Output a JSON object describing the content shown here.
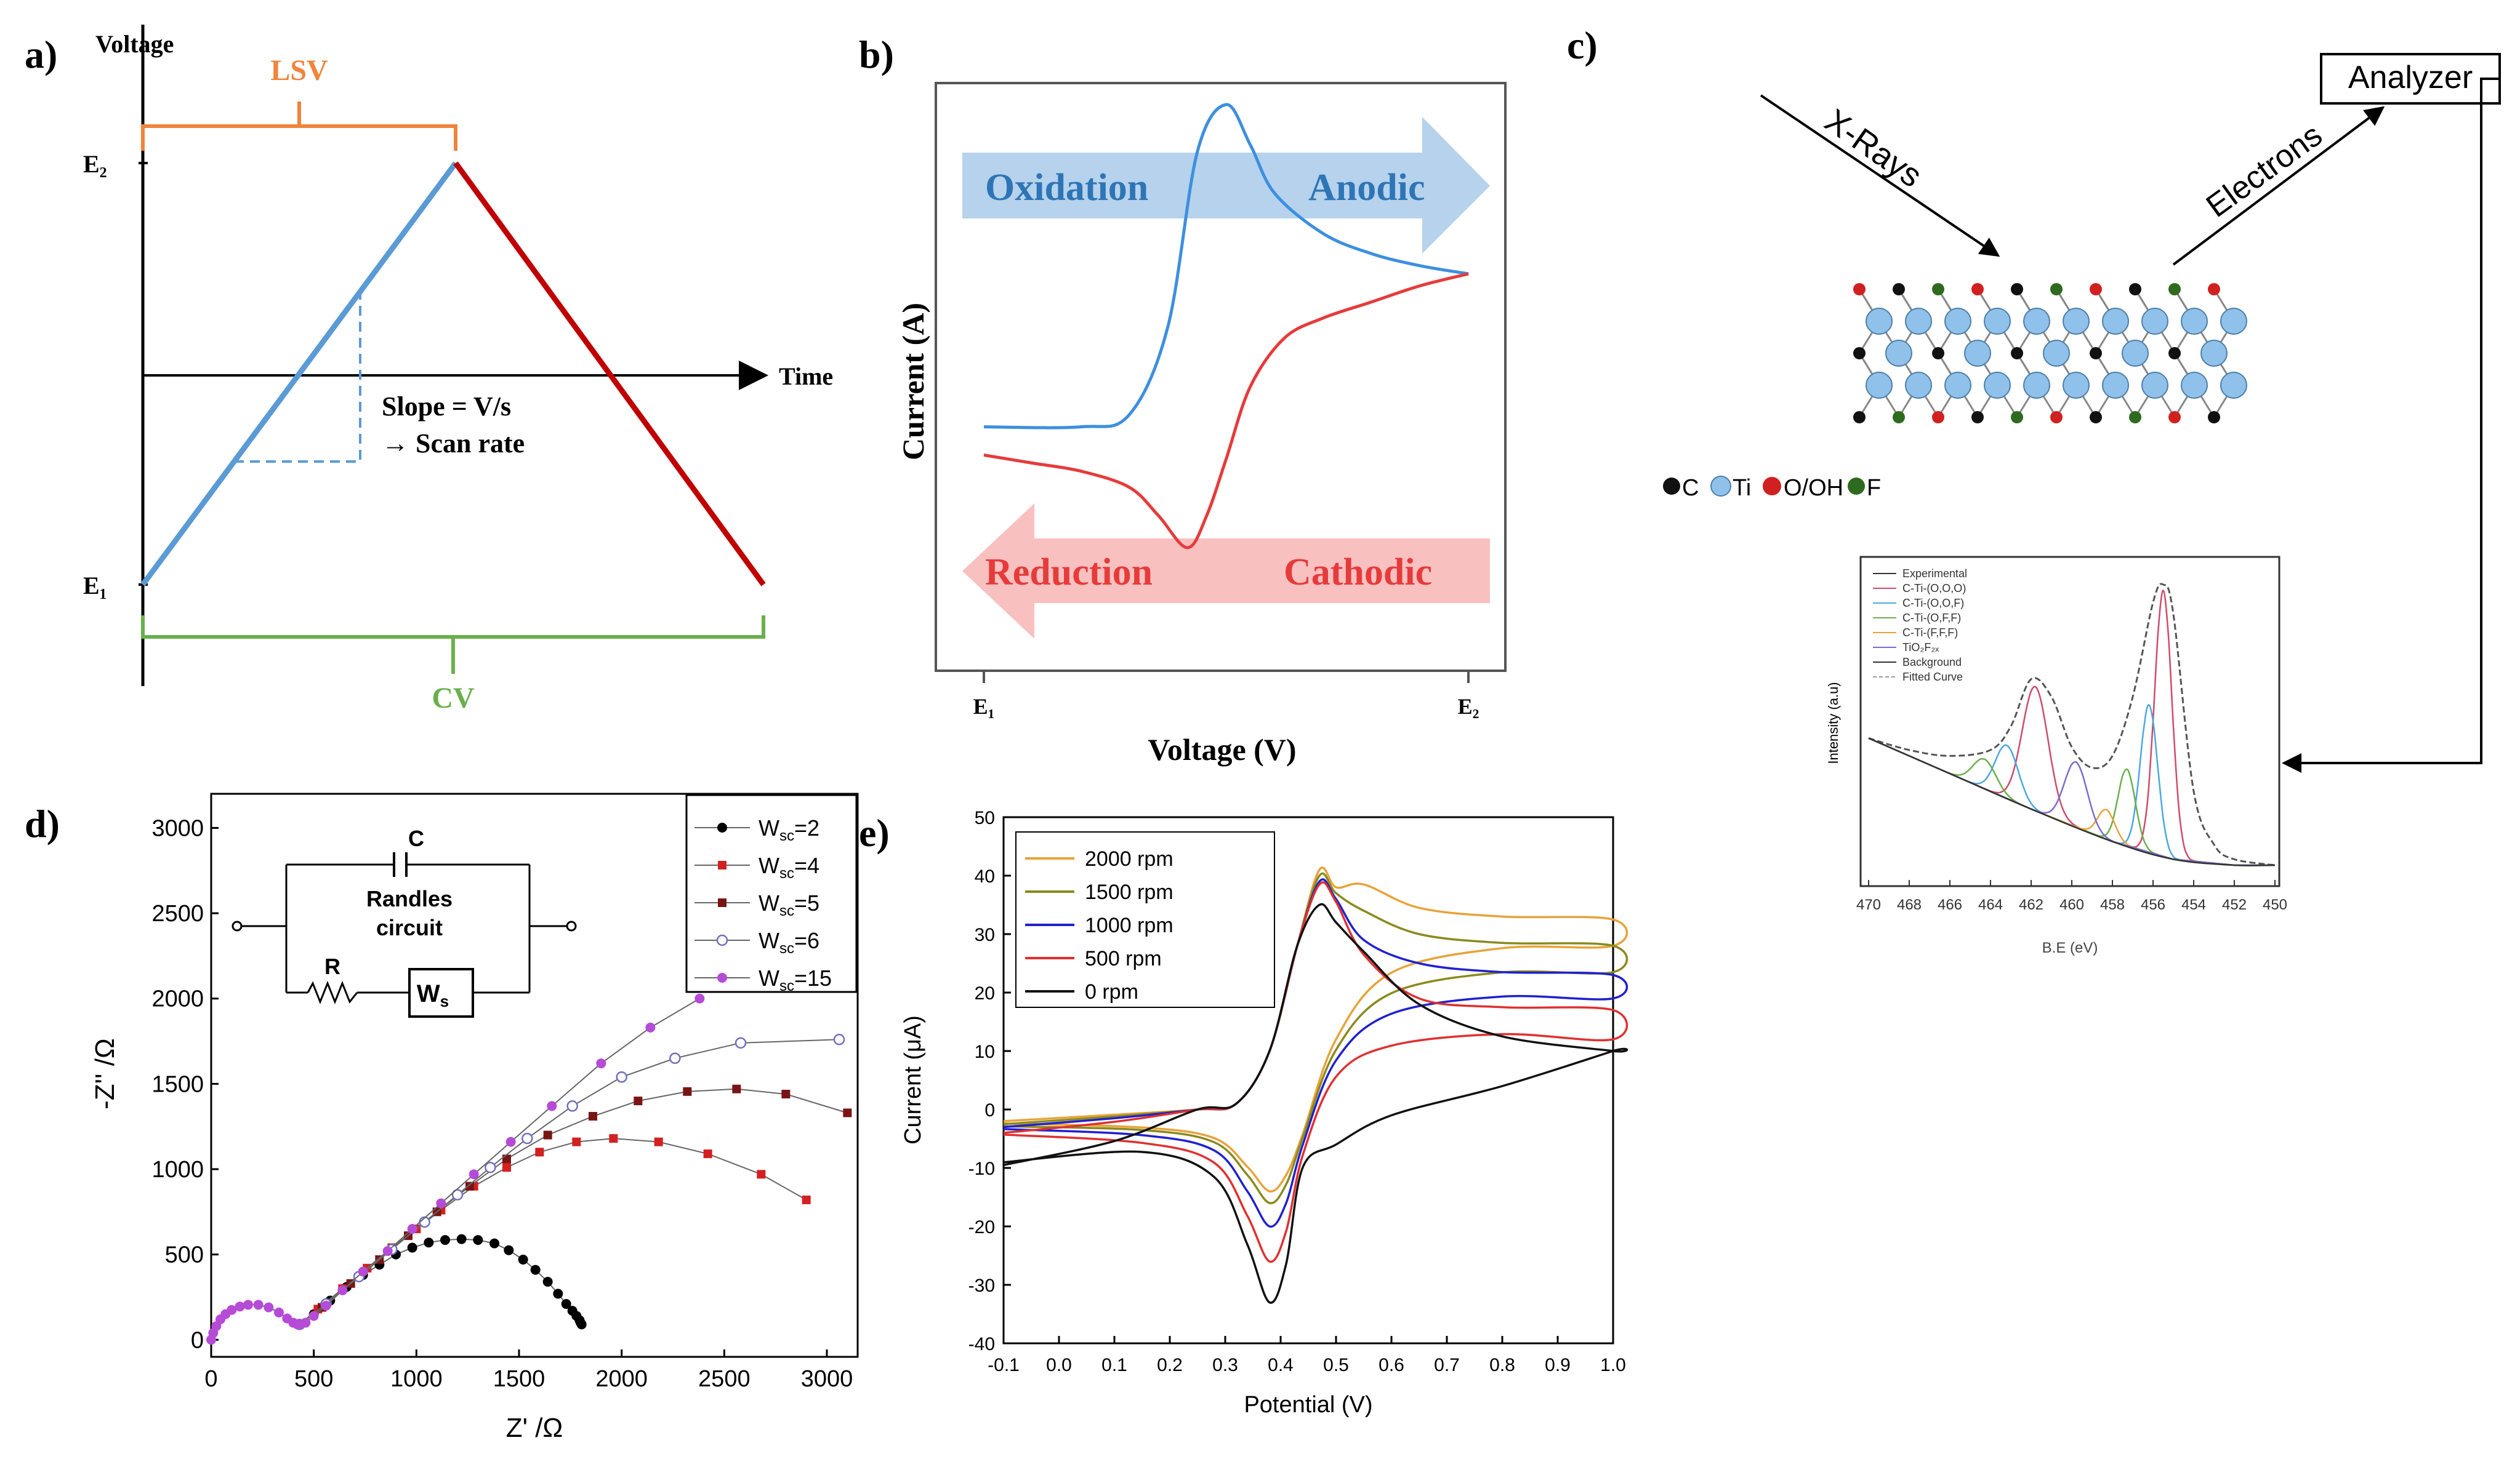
{
  "chart_data": [
    {
      "panel": "a)",
      "type": "line",
      "title": "",
      "xlabel": "Time",
      "ylabel": "Voltage",
      "y_levels": [
        "E₂",
        "E₁"
      ],
      "brackets": {
        "top": "LSV",
        "bottom": "CV"
      },
      "annotation": [
        "Slope = V/s",
        "→ Scan rate"
      ],
      "series": [
        {
          "name": "forward sweep",
          "color": "#5b9bd5",
          "x": [
            0,
            0.5
          ],
          "y": [
            0,
            1
          ]
        },
        {
          "name": "reverse sweep",
          "color": "#c00000",
          "x": [
            0.5,
            1.0
          ],
          "y": [
            1,
            0
          ]
        }
      ],
      "slope_triangle": {
        "x": [
          0.15,
          0.35
        ],
        "y": [
          0.3,
          0.7
        ]
      }
    },
    {
      "panel": "b)",
      "type": "line",
      "xlabel": "Voltage (V)",
      "ylabel": "Current (A)",
      "tick_labels": [
        "E₁",
        "E₂"
      ],
      "arrows": {
        "top": [
          "Oxidation",
          "Anodic"
        ],
        "bottom": [
          "Reduction",
          "Cathodic"
        ]
      },
      "series": [
        {
          "name": "anodic",
          "color": "#3d8fe0",
          "x": [
            0,
            0.2,
            0.3,
            0.38,
            0.44,
            0.5,
            0.55,
            0.6,
            0.7,
            0.8,
            0.9,
            1.0
          ],
          "y": [
            0.2,
            0.2,
            0.23,
            0.45,
            0.88,
            1.0,
            0.9,
            0.78,
            0.68,
            0.63,
            0.6,
            0.58
          ]
        },
        {
          "name": "cathodic",
          "color": "#e63b3b",
          "x": [
            1.0,
            0.9,
            0.8,
            0.7,
            0.62,
            0.55,
            0.5,
            0.46,
            0.42,
            0.36,
            0.3,
            0.2,
            0.1,
            0.0
          ],
          "y": [
            0.58,
            0.55,
            0.51,
            0.47,
            0.42,
            0.3,
            0.12,
            -0.02,
            -0.1,
            -0.02,
            0.05,
            0.09,
            0.11,
            0.13
          ]
        }
      ]
    },
    {
      "panel": "c)",
      "type": "diagram+line",
      "labels": {
        "analyzer": "Analyzer",
        "xrays": "X-Rays",
        "electrons": "Electrons"
      },
      "legend": [
        "C",
        "Ti",
        "O/OH",
        "F"
      ],
      "legend_colors": [
        "#111111",
        "#8fc1ea",
        "#d12020",
        "#2e6b1e"
      ],
      "inset": {
        "xlabel": "B.E (eV)",
        "ylabel": "Intensity (a.u)",
        "xticks": [
          470,
          468,
          466,
          464,
          462,
          460,
          458,
          456,
          454,
          452,
          450
        ],
        "legend": [
          "Experimental",
          "C-Ti-(O,O,O)",
          "C-Ti-(O,O,F)",
          "C-Ti-(O,F,F)",
          "C-Ti-(F,F,F)",
          "TiO₂F₂ₓ",
          "Background",
          "Fitted Curve"
        ],
        "legend_colors": [
          "#333333",
          "#d04a6a",
          "#4aa8e0",
          "#6ab04c",
          "#e8a23a",
          "#7b6bd0",
          "#333333",
          "#999999"
        ],
        "series": [
          {
            "name": "Experimental",
            "color": "#555555",
            "x": [
              470,
              468,
              466,
              464,
              463,
              462,
              461,
              460,
              459,
              458,
              457,
              456,
              455.5,
              455,
              454,
              453,
              452,
              450
            ],
            "y": [
              0.48,
              0.44,
              0.42,
              0.44,
              0.52,
              0.68,
              0.62,
              0.45,
              0.38,
              0.42,
              0.62,
              0.94,
              1.0,
              0.9,
              0.3,
              0.12,
              0.07,
              0.05
            ]
          },
          {
            "name": "Background",
            "color": "#333333",
            "x": [
              470,
              466,
              462,
              458,
              455,
              452,
              450
            ],
            "y": [
              0.48,
              0.36,
              0.24,
              0.13,
              0.07,
              0.05,
              0.05
            ]
          }
        ],
        "peaks": [
          {
            "name": "C-Ti-(O,O,O) a",
            "color": "#d04a6a",
            "center": 461.8,
            "height": 0.42,
            "width": 0.9
          },
          {
            "name": "C-Ti-(O,O,O) b",
            "color": "#d04a6a",
            "center": 455.5,
            "height": 0.9,
            "width": 0.6
          },
          {
            "name": "C-Ti-(O,O,F) a",
            "color": "#4aa8e0",
            "center": 463.2,
            "height": 0.18,
            "width": 0.8
          },
          {
            "name": "C-Ti-(O,O,F) b",
            "color": "#4aa8e0",
            "center": 456.2,
            "height": 0.5,
            "width": 0.6
          },
          {
            "name": "C-Ti-(O,F,F) a",
            "color": "#6ab04c",
            "center": 464.3,
            "height": 0.1,
            "width": 0.8
          },
          {
            "name": "C-Ti-(O,F,F) b",
            "color": "#6ab04c",
            "center": 457.3,
            "height": 0.26,
            "width": 0.6
          },
          {
            "name": "C-Ti-(F,F,F)",
            "color": "#e8a23a",
            "center": 458.3,
            "height": 0.1,
            "width": 0.6
          },
          {
            "name": "TiO2F2x",
            "color": "#7b6bd0",
            "center": 459.8,
            "height": 0.22,
            "width": 0.8
          }
        ]
      }
    },
    {
      "panel": "d)",
      "type": "scatter",
      "xlabel": "Z' /Ω",
      "ylabel": "-Z'' /Ω",
      "xlim": [
        0,
        3150
      ],
      "ylim": [
        -100,
        3200
      ],
      "xticks": [
        0,
        500,
        1000,
        1500,
        2000,
        2500,
        3000
      ],
      "yticks": [
        0,
        500,
        1000,
        1500,
        2000,
        2500,
        3000
      ],
      "circuit": {
        "C": "C",
        "title_line1": "Randles",
        "title_line2": "circuit",
        "R": "R",
        "Ws": "W"
      },
      "series": [
        {
          "name": "W",
          "sub": "sc",
          "suffix": "=2",
          "color": "#000000",
          "marker": "circle-filled",
          "x": [
            430,
            500,
            580,
            660,
            740,
            820,
            900,
            980,
            1060,
            1140,
            1220,
            1300,
            1380,
            1450,
            1520,
            1580,
            1640,
            1690,
            1730,
            1760,
            1780,
            1795,
            1800,
            1805
          ],
          "y": [
            90,
            150,
            230,
            310,
            380,
            440,
            500,
            540,
            570,
            585,
            590,
            585,
            565,
            525,
            470,
            410,
            340,
            270,
            210,
            170,
            140,
            115,
            100,
            90
          ]
        },
        {
          "name": "W",
          "sub": "sc",
          "suffix": "=4",
          "color": "#d42020",
          "marker": "square-filled",
          "x": [
            430,
            520,
            640,
            760,
            880,
            1000,
            1120,
            1280,
            1440,
            1600,
            1780,
            1960,
            2180,
            2420,
            2680,
            2900
          ],
          "y": [
            90,
            180,
            300,
            420,
            540,
            650,
            760,
            900,
            1010,
            1100,
            1160,
            1180,
            1160,
            1090,
            970,
            820
          ]
        },
        {
          "name": "W",
          "sub": "sc",
          "suffix": "=5",
          "color": "#7a1414",
          "marker": "square-filled",
          "x": [
            430,
            540,
            680,
            820,
            960,
            1100,
            1260,
            1440,
            1640,
            1860,
            2080,
            2320,
            2560,
            2800,
            3100
          ],
          "y": [
            90,
            190,
            330,
            470,
            610,
            750,
            900,
            1060,
            1200,
            1310,
            1400,
            1455,
            1470,
            1440,
            1330
          ]
        },
        {
          "name": "W",
          "sub": "sc",
          "suffix": "=6",
          "color": "#7070c0",
          "marker": "circle-open",
          "x": [
            430,
            560,
            720,
            880,
            1040,
            1200,
            1360,
            1540,
            1760,
            2000,
            2260,
            2580,
            3060
          ],
          "y": [
            90,
            210,
            370,
            530,
            690,
            850,
            1010,
            1180,
            1370,
            1540,
            1650,
            1740,
            1760
          ]
        },
        {
          "name": "W",
          "sub": "sc",
          "suffix": "=15",
          "color": "#b64bd8",
          "marker": "diamond-filled",
          "x": [
            0,
            10,
            25,
            45,
            70,
            100,
            140,
            180,
            230,
            280,
            330,
            370,
            400,
            420,
            430,
            460,
            500,
            560,
            640,
            740,
            860,
            980,
            1120,
            1280,
            1460,
            1660,
            1900,
            2140,
            2380
          ],
          "y": [
            0,
            40,
            80,
            120,
            150,
            175,
            195,
            205,
            205,
            190,
            160,
            125,
            100,
            90,
            90,
            100,
            140,
            200,
            290,
            400,
            520,
            650,
            800,
            970,
            1160,
            1370,
            1620,
            1830,
            2000
          ]
        }
      ]
    },
    {
      "panel": "e)",
      "type": "line",
      "xlabel": "Potential (V)",
      "ylabel": "Current (μA)",
      "xlim": [
        -0.1,
        1.0
      ],
      "ylim": [
        -40,
        50
      ],
      "xticks": [
        -0.1,
        0.0,
        0.1,
        0.2,
        0.3,
        0.4,
        0.5,
        0.6,
        0.7,
        0.8,
        0.9,
        1.0
      ],
      "yticks": [
        -40,
        -30,
        -20,
        -10,
        0,
        10,
        20,
        30,
        40,
        50
      ],
      "series": [
        {
          "name": "2000 rpm",
          "color": "#e8a33a",
          "ipa": 41,
          "ipc": -14,
          "plateau_fwd": 32.5,
          "plateau_rev": 30,
          "start": -2
        },
        {
          "name": "1500 rpm",
          "color": "#8a8a1e",
          "ipa": 40,
          "ipc": -16,
          "plateau_fwd": 28,
          "plateau_rev": 25.5,
          "start": -2.5
        },
        {
          "name": "1000 rpm",
          "color": "#2020d0",
          "ipa": 39,
          "ipc": -20,
          "plateau_fwd": 23,
          "plateau_rev": 21,
          "start": -3
        },
        {
          "name": "500 rpm",
          "color": "#e03030",
          "ipa": 38.5,
          "ipc": -26,
          "plateau_fwd": 17,
          "plateau_rev": 14,
          "start": -4
        },
        {
          "name": "0 rpm",
          "color": "#111111",
          "ipa": 35,
          "ipc": -33,
          "plateau_fwd": 10,
          "plateau_rev": 9.5,
          "start": -9.5
        }
      ]
    }
  ],
  "panel_labels": [
    "a)",
    "b)",
    "c)",
    "d)",
    "e)"
  ]
}
